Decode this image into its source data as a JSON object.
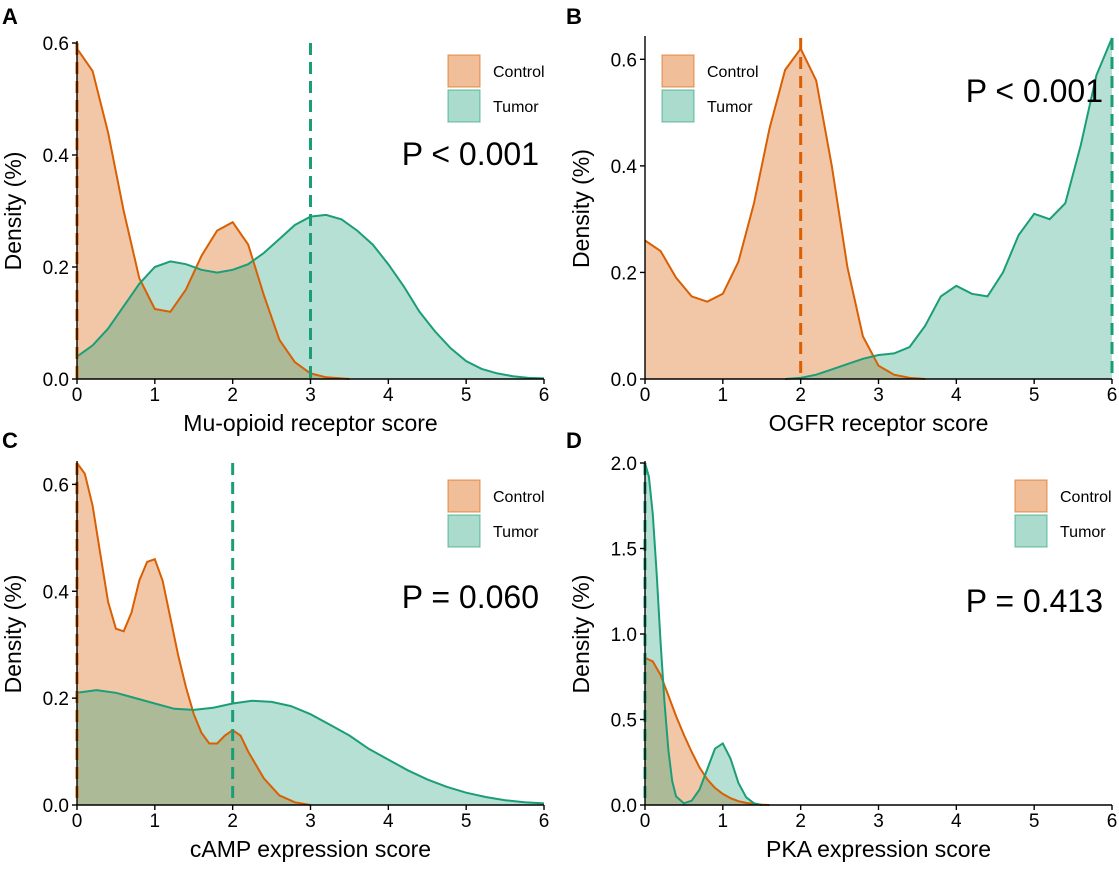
{
  "colors": {
    "control": "#d95f02",
    "tumor": "#1b9e77",
    "control_fill": "#f4c2a1",
    "tumor_fill": "#b3e0d3"
  },
  "legend": {
    "labels": [
      "Control",
      "Tumor"
    ],
    "position": "top-right"
  },
  "chart_data": [
    {
      "panel": "A",
      "type": "density",
      "xlabel": "Mu-opioid receptor score",
      "ylabel": "Density (%)",
      "xlim": [
        0,
        6
      ],
      "ylim": [
        0,
        0.6
      ],
      "xticks": [
        0,
        1,
        2,
        3,
        4,
        5,
        6
      ],
      "yticks": [
        0.0,
        0.2,
        0.4,
        0.6
      ],
      "ytick_labels": [
        "0.0",
        "0.2",
        "0.4",
        "0.6"
      ],
      "annotation": "P < 0.001",
      "series": [
        {
          "name": "Control",
          "x": [
            0,
            0.2,
            0.4,
            0.6,
            0.8,
            1.0,
            1.2,
            1.4,
            1.6,
            1.8,
            2.0,
            2.2,
            2.4,
            2.6,
            2.8,
            3.0,
            3.2,
            3.5
          ],
          "y": [
            0.59,
            0.55,
            0.44,
            0.3,
            0.18,
            0.125,
            0.12,
            0.16,
            0.22,
            0.265,
            0.28,
            0.24,
            0.15,
            0.07,
            0.03,
            0.01,
            0.003,
            0
          ],
          "median": 0
        },
        {
          "name": "Tumor",
          "x": [
            0,
            0.2,
            0.4,
            0.6,
            0.8,
            1.0,
            1.2,
            1.4,
            1.6,
            1.8,
            2.0,
            2.2,
            2.4,
            2.6,
            2.8,
            3.0,
            3.2,
            3.4,
            3.6,
            3.8,
            4.0,
            4.2,
            4.4,
            4.6,
            4.8,
            5.0,
            5.2,
            5.4,
            5.6,
            5.8,
            6.0
          ],
          "y": [
            0.04,
            0.06,
            0.09,
            0.13,
            0.17,
            0.2,
            0.21,
            0.205,
            0.195,
            0.19,
            0.195,
            0.205,
            0.225,
            0.25,
            0.275,
            0.29,
            0.293,
            0.285,
            0.265,
            0.24,
            0.205,
            0.165,
            0.12,
            0.085,
            0.055,
            0.032,
            0.018,
            0.01,
            0.005,
            0.002,
            0.001
          ],
          "median": 3
        }
      ]
    },
    {
      "panel": "B",
      "type": "density",
      "xlabel": "OGFR receptor score",
      "ylabel": "Density (%)",
      "xlim": [
        0,
        6
      ],
      "ylim": [
        0,
        0.64
      ],
      "xticks": [
        0,
        1,
        2,
        3,
        4,
        5,
        6
      ],
      "yticks": [
        0.0,
        0.2,
        0.4,
        0.6
      ],
      "ytick_labels": [
        "0.0",
        "0.2",
        "0.4",
        "0.6"
      ],
      "annotation": "P < 0.001",
      "series": [
        {
          "name": "Control",
          "x": [
            0,
            0.2,
            0.4,
            0.6,
            0.8,
            1.0,
            1.2,
            1.4,
            1.6,
            1.8,
            2.0,
            2.2,
            2.4,
            2.6,
            2.8,
            3.0,
            3.2,
            3.4,
            3.6
          ],
          "y": [
            0.26,
            0.24,
            0.19,
            0.155,
            0.145,
            0.16,
            0.22,
            0.33,
            0.47,
            0.58,
            0.62,
            0.56,
            0.4,
            0.21,
            0.08,
            0.025,
            0.008,
            0.002,
            0
          ],
          "median": 2
        },
        {
          "name": "Tumor",
          "x": [
            1.8,
            2.0,
            2.2,
            2.4,
            2.6,
            2.8,
            3.0,
            3.2,
            3.4,
            3.6,
            3.8,
            4.0,
            4.2,
            4.4,
            4.6,
            4.8,
            5.0,
            5.2,
            5.4,
            5.6,
            5.8,
            6.0
          ],
          "y": [
            0,
            0.002,
            0.008,
            0.018,
            0.028,
            0.038,
            0.045,
            0.048,
            0.06,
            0.1,
            0.155,
            0.175,
            0.16,
            0.155,
            0.2,
            0.27,
            0.31,
            0.3,
            0.33,
            0.44,
            0.57,
            0.64
          ],
          "median": 6
        }
      ]
    },
    {
      "panel": "C",
      "type": "density",
      "xlabel": "cAMP expression score",
      "ylabel": "Density (%)",
      "xlim": [
        0,
        6
      ],
      "ylim": [
        0,
        0.64
      ],
      "xticks": [
        0,
        1,
        2,
        3,
        4,
        5,
        6
      ],
      "yticks": [
        0.0,
        0.2,
        0.4,
        0.6
      ],
      "ytick_labels": [
        "0.0",
        "0.2",
        "0.4",
        "0.6"
      ],
      "annotation": "P = 0.060",
      "series": [
        {
          "name": "Control",
          "x": [
            0,
            0.1,
            0.2,
            0.3,
            0.4,
            0.5,
            0.6,
            0.7,
            0.8,
            0.9,
            1.0,
            1.1,
            1.2,
            1.3,
            1.4,
            1.5,
            1.6,
            1.7,
            1.8,
            1.9,
            2.0,
            2.1,
            2.2,
            2.4,
            2.6,
            2.8,
            3.0
          ],
          "y": [
            0.64,
            0.62,
            0.56,
            0.47,
            0.38,
            0.33,
            0.325,
            0.36,
            0.42,
            0.455,
            0.46,
            0.42,
            0.35,
            0.28,
            0.22,
            0.17,
            0.135,
            0.115,
            0.115,
            0.13,
            0.14,
            0.13,
            0.1,
            0.05,
            0.018,
            0.005,
            0
          ],
          "median": 0
        },
        {
          "name": "Tumor",
          "x": [
            0,
            0.25,
            0.5,
            0.75,
            1.0,
            1.25,
            1.5,
            1.75,
            2.0,
            2.25,
            2.5,
            2.75,
            3.0,
            3.25,
            3.5,
            3.75,
            4.0,
            4.25,
            4.5,
            4.75,
            5.0,
            5.25,
            5.5,
            5.75,
            6.0
          ],
          "y": [
            0.21,
            0.215,
            0.21,
            0.2,
            0.19,
            0.18,
            0.178,
            0.182,
            0.19,
            0.195,
            0.193,
            0.185,
            0.17,
            0.15,
            0.13,
            0.105,
            0.085,
            0.065,
            0.048,
            0.034,
            0.023,
            0.015,
            0.009,
            0.005,
            0.003
          ],
          "median": 2
        }
      ]
    },
    {
      "panel": "D",
      "type": "density",
      "xlabel": "PKA expression score",
      "ylabel": "Density (%)",
      "xlim": [
        0,
        6
      ],
      "ylim": [
        0,
        2.0
      ],
      "xticks": [
        0,
        1,
        2,
        3,
        4,
        5,
        6
      ],
      "yticks": [
        0.0,
        0.5,
        1.0,
        1.5,
        2.0
      ],
      "ytick_labels": [
        "0.0",
        "0.5",
        "1.0",
        "1.5",
        "2.0"
      ],
      "annotation": "P = 0.413",
      "series": [
        {
          "name": "Control",
          "x": [
            0,
            0.1,
            0.2,
            0.3,
            0.4,
            0.5,
            0.6,
            0.7,
            0.8,
            0.9,
            1.0,
            1.1,
            1.2,
            1.3,
            1.4,
            1.5,
            1.6
          ],
          "y": [
            0.86,
            0.84,
            0.76,
            0.64,
            0.52,
            0.41,
            0.31,
            0.22,
            0.15,
            0.1,
            0.065,
            0.04,
            0.022,
            0.012,
            0.006,
            0.002,
            0
          ],
          "median": 0
        },
        {
          "name": "Tumor",
          "x": [
            0,
            0.05,
            0.1,
            0.15,
            0.2,
            0.25,
            0.3,
            0.35,
            0.4,
            0.5,
            0.6,
            0.7,
            0.8,
            0.9,
            1.0,
            1.1,
            1.2,
            1.3,
            1.4,
            1.5
          ],
          "y": [
            2.0,
            1.92,
            1.7,
            1.35,
            0.95,
            0.6,
            0.32,
            0.14,
            0.05,
            0.01,
            0.025,
            0.09,
            0.21,
            0.33,
            0.36,
            0.27,
            0.13,
            0.045,
            0.01,
            0
          ],
          "median": 0
        }
      ]
    }
  ]
}
